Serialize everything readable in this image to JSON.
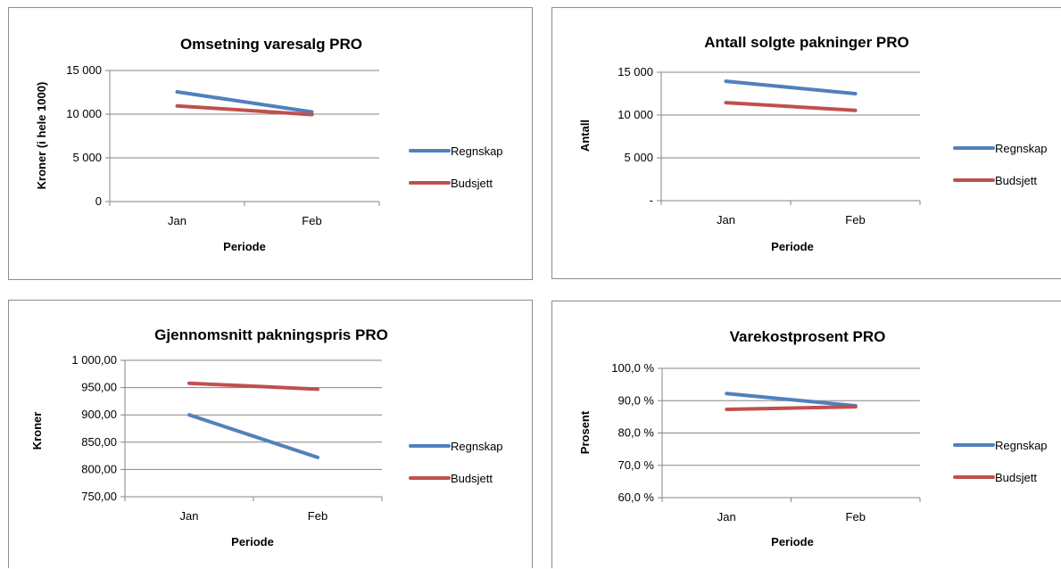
{
  "chart_data": [
    {
      "type": "line",
      "title": "Omsetning varesalg PRO",
      "xlabel": "Periode",
      "ylabel": "Kroner (i hele 1000)",
      "categories": [
        "Jan",
        "Feb"
      ],
      "ylim": [
        0,
        15000
      ],
      "yticks": [
        0,
        5000,
        10000,
        15000
      ],
      "ytick_labels": [
        "0",
        "5 000",
        "10 000",
        "15 000"
      ],
      "grid": true,
      "legend_position": "right",
      "series": [
        {
          "name": "Regnskap",
          "color": "#4f81bd",
          "values": [
            12550,
            10250
          ]
        },
        {
          "name": "Budsjett",
          "color": "#c0504d",
          "values": [
            10950,
            9950
          ]
        }
      ]
    },
    {
      "type": "line",
      "title": "Antall solgte pakninger PRO",
      "xlabel": "Periode",
      "ylabel": "Antall",
      "categories": [
        "Jan",
        "Feb"
      ],
      "ylim": [
        0,
        15000
      ],
      "yticks": [
        0,
        5000,
        10000,
        15000
      ],
      "ytick_labels": [
        "-",
        "5 000",
        "10 000",
        "15 000"
      ],
      "grid": true,
      "legend_position": "right",
      "series": [
        {
          "name": "Regnskap",
          "color": "#4f81bd",
          "values": [
            13950,
            12500
          ]
        },
        {
          "name": "Budsjett",
          "color": "#c0504d",
          "values": [
            11450,
            10550
          ]
        }
      ]
    },
    {
      "type": "line",
      "title": "Gjennomsnitt pakningspris PRO",
      "xlabel": "Periode",
      "ylabel": "Kroner",
      "categories": [
        "Jan",
        "Feb"
      ],
      "ylim": [
        750,
        1000
      ],
      "yticks": [
        750,
        800,
        850,
        900,
        950,
        1000
      ],
      "ytick_labels": [
        "750,00",
        "800,00",
        "850,00",
        "900,00",
        "950,00",
        "1 000,00"
      ],
      "grid": true,
      "legend_position": "right",
      "series": [
        {
          "name": "Regnskap",
          "color": "#4f81bd",
          "values": [
            900,
            822
          ]
        },
        {
          "name": "Budsjett",
          "color": "#c0504d",
          "values": [
            958,
            947
          ]
        }
      ]
    },
    {
      "type": "line",
      "title": "Varekostprosent PRO",
      "xlabel": "Periode",
      "ylabel": "Prosent",
      "categories": [
        "Jan",
        "Feb"
      ],
      "ylim": [
        60,
        100
      ],
      "yticks": [
        60,
        70,
        80,
        90,
        100
      ],
      "ytick_labels": [
        "60,0 %",
        "70,0 %",
        "80,0 %",
        "90,0 %",
        "100,0 %"
      ],
      "grid": true,
      "legend_position": "right",
      "series": [
        {
          "name": "Regnskap",
          "color": "#4f81bd",
          "values": [
            92.2,
            88.4
          ]
        },
        {
          "name": "Budsjett",
          "color": "#c0504d",
          "values": [
            87.3,
            88.1
          ]
        }
      ]
    }
  ]
}
